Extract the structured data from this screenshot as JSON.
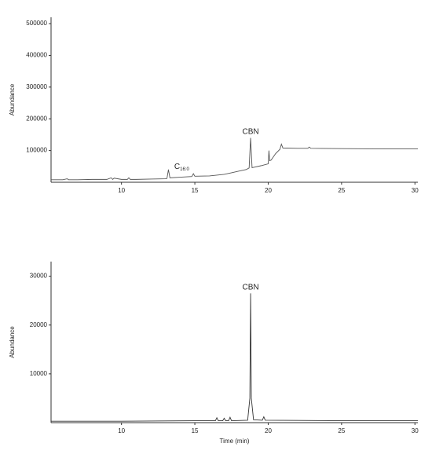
{
  "chart_data": [
    {
      "type": "line",
      "ylabel": "Abundance",
      "xlim": [
        5.2,
        30.2
      ],
      "xticks": [
        10,
        15,
        20,
        25,
        30
      ],
      "ylim": [
        0,
        520000
      ],
      "yticks": [
        100000,
        200000,
        300000,
        400000,
        500000
      ],
      "series": [
        {
          "color": "#555555",
          "x": [
            5.2,
            6,
            6.3,
            6.4,
            7,
            8,
            9,
            9.3,
            9.4,
            9.5,
            10,
            10.4,
            10.5,
            10.6,
            11,
            12,
            13,
            13.1,
            13.2,
            13.3,
            14,
            14.8,
            14.9,
            15,
            16,
            17,
            17.5,
            18,
            18.5,
            18.7,
            18.8,
            18.9,
            19.5,
            20,
            20.05,
            20.1,
            20.2,
            20.5,
            20.8,
            20.9,
            21,
            22,
            22.7,
            22.8,
            22.9,
            25,
            28,
            30.2
          ],
          "values": [
            8000,
            8000,
            11000,
            8000,
            8000,
            9000,
            9000,
            14000,
            9000,
            13000,
            9000,
            9000,
            14000,
            9000,
            9000,
            10000,
            11000,
            12000,
            40000,
            14000,
            16000,
            18000,
            27000,
            19000,
            20000,
            25000,
            30000,
            35000,
            40000,
            45000,
            140000,
            46000,
            52000,
            58000,
            100000,
            68000,
            70000,
            90000,
            104000,
            120000,
            108000,
            107000,
            107000,
            111000,
            107000,
            106000,
            105000,
            105000
          ]
        }
      ],
      "annotations": [
        {
          "text": "CBN",
          "x": 18.8,
          "y": 140000
        },
        {
          "text": "C",
          "subscript": "16:0",
          "x": 13.6,
          "y": 30000
        }
      ]
    },
    {
      "type": "line",
      "ylabel": "Abundance",
      "xlabel": "Time (min)",
      "xlim": [
        5.2,
        30.2
      ],
      "xticks": [
        10,
        15,
        20,
        25,
        30
      ],
      "ylim": [
        0,
        33000
      ],
      "yticks": [
        10000,
        20000,
        30000
      ],
      "series": [
        {
          "color": "#333333",
          "x": [
            5.2,
            10,
            15,
            16.4,
            16.5,
            16.6,
            16.9,
            17,
            17.1,
            17.3,
            17.4,
            17.5,
            18.6,
            18.75,
            18.8,
            18.85,
            19,
            19.6,
            19.7,
            19.8,
            25,
            30.2
          ],
          "values": [
            300,
            300,
            400,
            400,
            1000,
            400,
            400,
            900,
            400,
            400,
            1100,
            400,
            500,
            5000,
            26500,
            5000,
            600,
            500,
            1200,
            500,
            400,
            400
          ]
        }
      ],
      "annotations": [
        {
          "text": "CBN",
          "x": 18.8,
          "y": 26500
        }
      ]
    }
  ]
}
